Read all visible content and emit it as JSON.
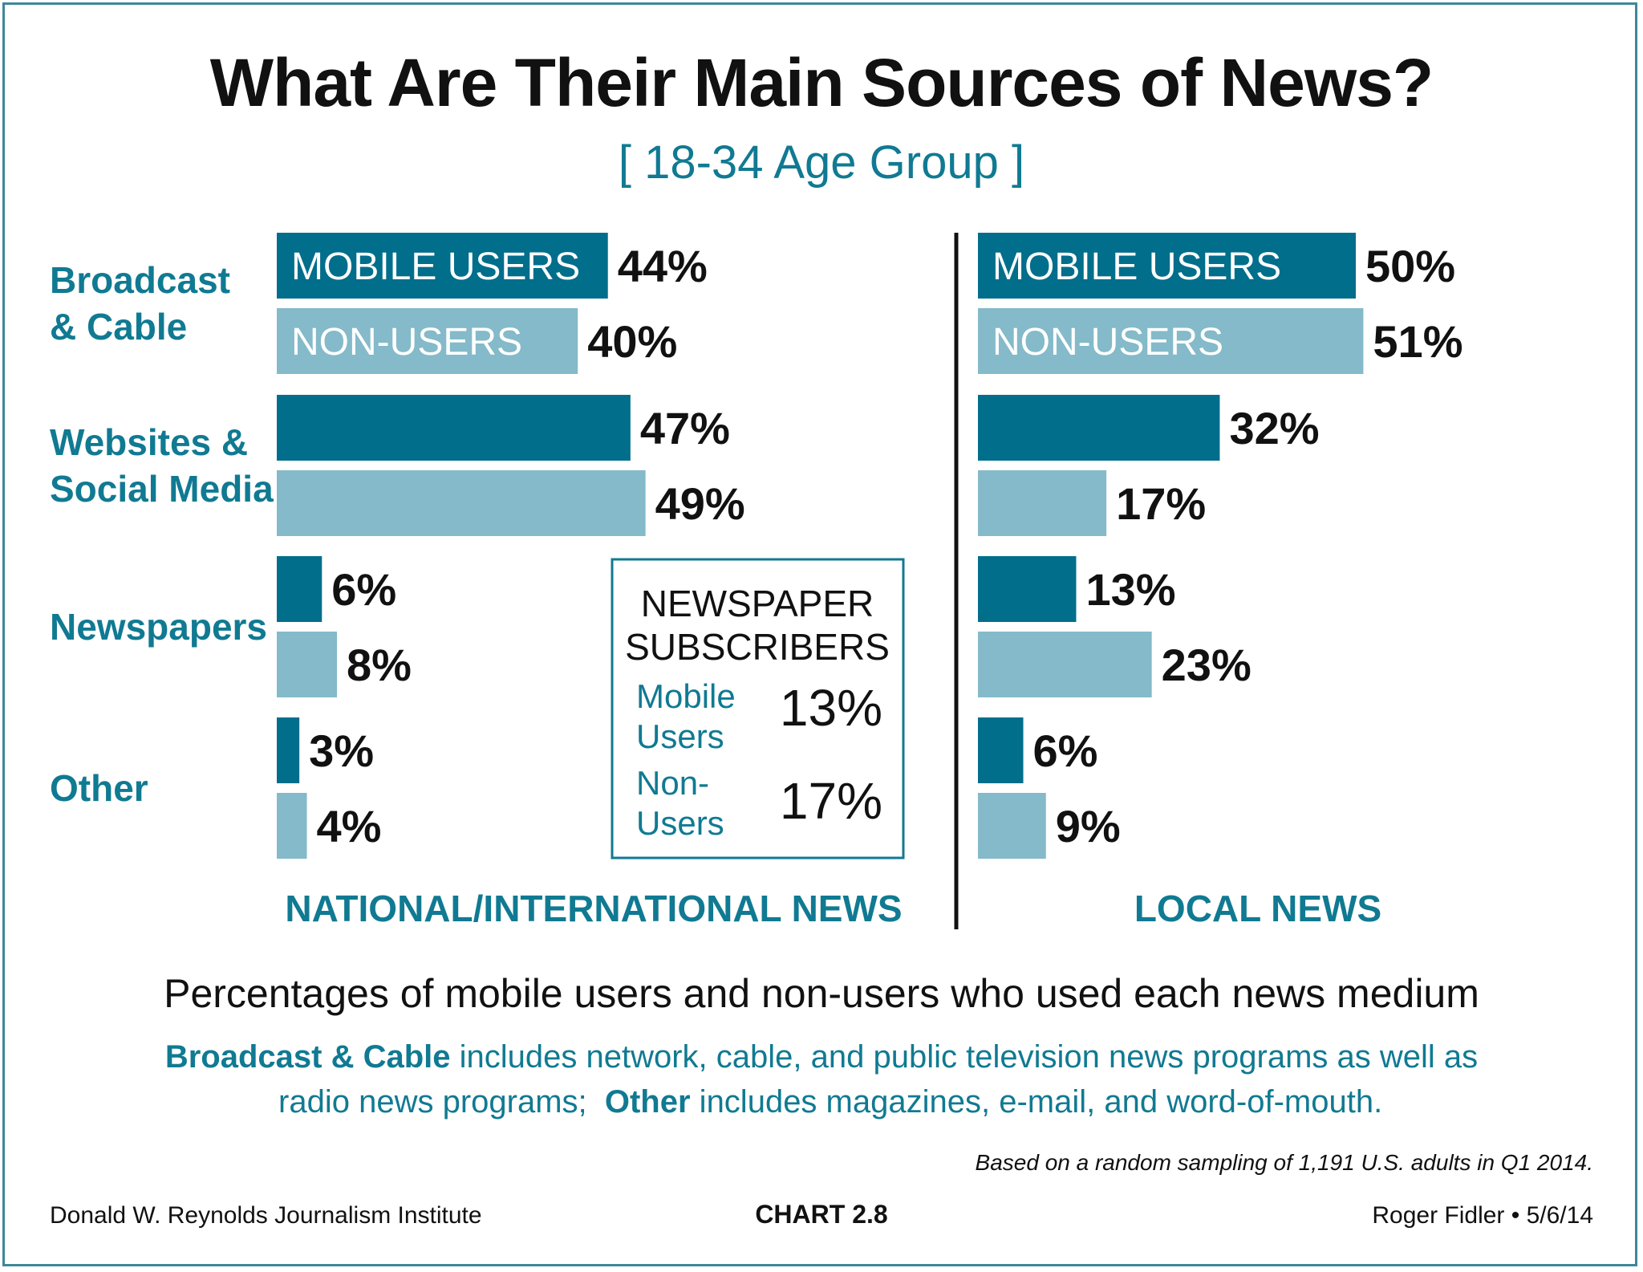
{
  "title": "What Are Their Main Sources of News?",
  "subtitle": "[ 18-34 Age Group ]",
  "colors": {
    "mobile": "#016e8b",
    "nonusers": "#84bac9",
    "accent_text": "#107a92",
    "frame": "#3f8797"
  },
  "chart_data": [
    {
      "type": "bar",
      "orientation": "horizontal",
      "title": "NATIONAL/INTERNATIONAL NEWS",
      "categories": [
        "Broadcast & Cable",
        "Websites & Social Media",
        "Newspapers",
        "Other"
      ],
      "series": [
        {
          "name": "MOBILE USERS",
          "values": [
            44,
            47,
            6,
            3
          ]
        },
        {
          "name": "NON-USERS",
          "values": [
            40,
            49,
            8,
            4
          ]
        }
      ],
      "unit": "%"
    },
    {
      "type": "bar",
      "orientation": "horizontal",
      "title": "LOCAL NEWS",
      "categories": [
        "Broadcast & Cable",
        "Websites & Social Media",
        "Newspapers",
        "Other"
      ],
      "series": [
        {
          "name": "MOBILE USERS",
          "values": [
            50,
            32,
            13,
            6
          ]
        },
        {
          "name": "NON-USERS",
          "values": [
            51,
            17,
            23,
            9
          ]
        }
      ],
      "unit": "%"
    }
  ],
  "category_labels": [
    [
      "Broadcast",
      "& Cable"
    ],
    [
      "Websites &",
      "Social Media"
    ],
    [
      "Newspapers"
    ],
    [
      "Other"
    ]
  ],
  "subscribers_box": {
    "title_line1": "NEWSPAPER",
    "title_line2": "SUBSCRIBERS",
    "rows": [
      {
        "label_line1": "Mobile",
        "label_line2": "Users",
        "value": "13%"
      },
      {
        "label_line1": "Non-",
        "label_line2": "Users",
        "value": "17%"
      }
    ]
  },
  "footer": {
    "caption": "Percentages of mobile users and non-users who used each news medium",
    "note_line1_bold": "Broadcast & Cable",
    "note_line1_rest": " includes network, cable, and public television news programs as well as",
    "note_line2_start": "radio news programs;  ",
    "note_line2_bold": "Other",
    "note_line2_rest": " includes magazines, e-mail, and word-of-mouth.",
    "source": "Based on a random sampling of 1,191 U.S. adults in Q1 2014.",
    "institute": "Donald W. Reynolds Journalism Institute",
    "chart_number": "CHART 2.8",
    "author_date": "Roger Fidler • 5/6/14"
  }
}
